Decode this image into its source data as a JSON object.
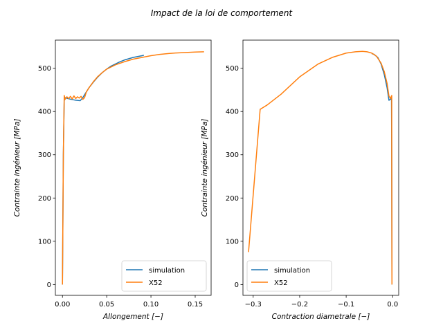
{
  "chart_data": {
    "title": "Impact de la loi de comportement",
    "colors": {
      "simulation": "#1f77b4",
      "X52": "#ff7f0e"
    },
    "panels": [
      {
        "type": "line",
        "xlabel": "Allongement [−]",
        "ylabel": "Contrainte ingénieur [MPa]",
        "xlim": [
          -0.008,
          0.168
        ],
        "ylim": [
          -25,
          565
        ],
        "xticks": [
          0.0,
          0.05,
          0.1,
          0.15
        ],
        "xtick_labels": [
          "0.00",
          "0.05",
          "0.10",
          "0.15"
        ],
        "yticks": [
          0,
          100,
          200,
          300,
          400,
          500
        ],
        "ytick_labels": [
          "0",
          "100",
          "200",
          "300",
          "400",
          "500"
        ],
        "legend_position": "lower-right",
        "series": [
          {
            "name": "simulation",
            "x": [
              0.0,
              0.001,
              0.002,
              0.003,
              0.006,
              0.01,
              0.015,
              0.02,
              0.023,
              0.026,
              0.03,
              0.035,
              0.04,
              0.045,
              0.05,
              0.055,
              0.06,
              0.065,
              0.07,
              0.075,
              0.08,
              0.085,
              0.09,
              0.092
            ],
            "y": [
              0,
              300,
              425,
              432,
              430,
              428,
              426,
              425,
              432,
              442,
              455,
              468,
              480,
              490,
              498,
              505,
              510,
              515,
              519,
              522,
              525,
              527,
              529,
              530
            ]
          },
          {
            "name": "X52",
            "x": [
              0.0,
              0.001,
              0.002,
              0.003,
              0.005,
              0.007,
              0.009,
              0.011,
              0.013,
              0.015,
              0.017,
              0.019,
              0.021,
              0.023,
              0.025,
              0.027,
              0.03,
              0.035,
              0.04,
              0.045,
              0.05,
              0.06,
              0.07,
              0.08,
              0.09,
              0.1,
              0.11,
              0.12,
              0.13,
              0.14,
              0.15,
              0.16
            ],
            "y": [
              0,
              300,
              437,
              428,
              434,
              430,
              435,
              429,
              436,
              430,
              434,
              431,
              435,
              428,
              432,
              445,
              455,
              469,
              481,
              490,
              498,
              508,
              515,
              521,
              525,
              529,
              532,
              534,
              535.5,
              536.5,
              537.5,
              538
            ]
          }
        ]
      },
      {
        "type": "line",
        "xlabel": "Contraction diametrale [−]",
        "ylabel": "Contrainte ingénieur [MPa]",
        "xlim": [
          -0.322,
          0.013
        ],
        "ylim": [
          -25,
          565
        ],
        "xticks": [
          -0.3,
          -0.2,
          -0.1,
          0.0
        ],
        "xtick_labels": [
          "−0.3",
          "−0.2",
          "−0.1",
          "0.0"
        ],
        "yticks": [
          0,
          100,
          200,
          300,
          400,
          500
        ],
        "ytick_labels": [
          "0",
          "100",
          "200",
          "300",
          "400",
          "500"
        ],
        "legend_position": "lower-left",
        "series": [
          {
            "name": "simulation",
            "x": [
              -0.0015,
              -0.002,
              -0.0025,
              -0.005,
              -0.008,
              -0.012,
              -0.018,
              -0.025,
              -0.032,
              -0.04,
              -0.045
            ],
            "y": [
              0,
              300,
              430,
              428,
              426,
              455,
              485,
              510,
              525,
              532,
              534
            ]
          },
          {
            "name": "X52",
            "x": [
              -0.0015,
              -0.002,
              -0.002,
              -0.005,
              -0.008,
              -0.012,
              -0.018,
              -0.025,
              -0.035,
              -0.045,
              -0.055,
              -0.065,
              -0.08,
              -0.1,
              -0.13,
              -0.16,
              -0.2,
              -0.24,
              -0.27,
              -0.285,
              -0.31
            ],
            "y": [
              0,
              300,
              437,
              430,
              436,
              465,
              492,
              512,
              528,
              535,
              538,
              539,
              538,
              535,
              525,
              510,
              480,
              440,
              415,
              405,
              75
            ]
          }
        ]
      }
    ]
  }
}
